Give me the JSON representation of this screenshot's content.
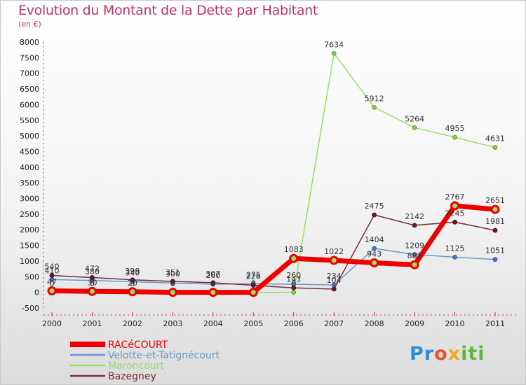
{
  "header": {
    "title": "Evolution du Montant de la Dette par Habitant",
    "subtitle": "(en €)"
  },
  "logo": {
    "text": "Proxiti",
    "parts": [
      "Pr",
      "o",
      "x",
      "iti"
    ]
  },
  "colors": {
    "racecourt": "#ee0000",
    "velotte": "#6699cc",
    "maroncourt": "#99dd66",
    "bazegney": "#7a2a3a",
    "title": "#c0306a"
  },
  "chart_data": {
    "type": "line",
    "title": "Evolution du Montant de la Dette par Habitant",
    "ylabel": "(en €)",
    "xlabel": "",
    "ylim": [
      -500,
      8000
    ],
    "y_ticks": [
      -500,
      0,
      500,
      1000,
      1500,
      2000,
      2500,
      3000,
      3500,
      4000,
      4500,
      5000,
      5500,
      6000,
      6500,
      7000,
      7500,
      8000
    ],
    "categories": [
      "2000",
      "2001",
      "2002",
      "2003",
      "2004",
      "2005",
      "2006",
      "2007",
      "2008",
      "2009",
      "2010",
      "2011"
    ],
    "series": [
      {
        "name": "RACéCOURT",
        "key": "racecourt",
        "values": [
          47,
          30,
          20,
          0,
          0,
          0,
          1083,
          1022,
          943,
          882,
          2767,
          2651
        ],
        "labels": [
          "47",
          "30",
          "20",
          "0",
          "0",
          "0",
          "1083",
          "1022",
          "943",
          "882",
          "2767",
          "2651"
        ]
      },
      {
        "name": "Velotte-et-Tatignécourt",
        "key": "velotte",
        "values": [
          410,
          380,
          340,
          300,
          260,
          275,
          260,
          234,
          1404,
          1209,
          1125,
          1051
        ],
        "labels": [
          "410",
          "380",
          "340",
          "300",
          "260",
          "275",
          "260",
          "234",
          "1404",
          "1209",
          "1125",
          "1051"
        ]
      },
      {
        "name": "Maroncourt",
        "key": "maroncourt",
        "values": [
          0,
          0,
          0,
          0,
          0,
          0,
          0,
          7634,
          5912,
          5264,
          4955,
          4631
        ],
        "labels": [
          "0",
          "0",
          "0",
          "0",
          "0",
          "0",
          "0",
          "7634",
          "5912",
          "5264",
          "4955",
          "4631"
        ]
      },
      {
        "name": "Bazegney",
        "key": "bazegney",
        "values": [
          540,
          472,
          399,
          351,
          307,
          226,
          143,
          104,
          2475,
          2142,
          2245,
          1981
        ],
        "labels": [
          "540",
          "472",
          "399",
          "351",
          "307",
          "226",
          "143",
          "104",
          "2475",
          "2142",
          "2245",
          "1981"
        ]
      }
    ],
    "legend": "bottom-left",
    "grid": false
  }
}
